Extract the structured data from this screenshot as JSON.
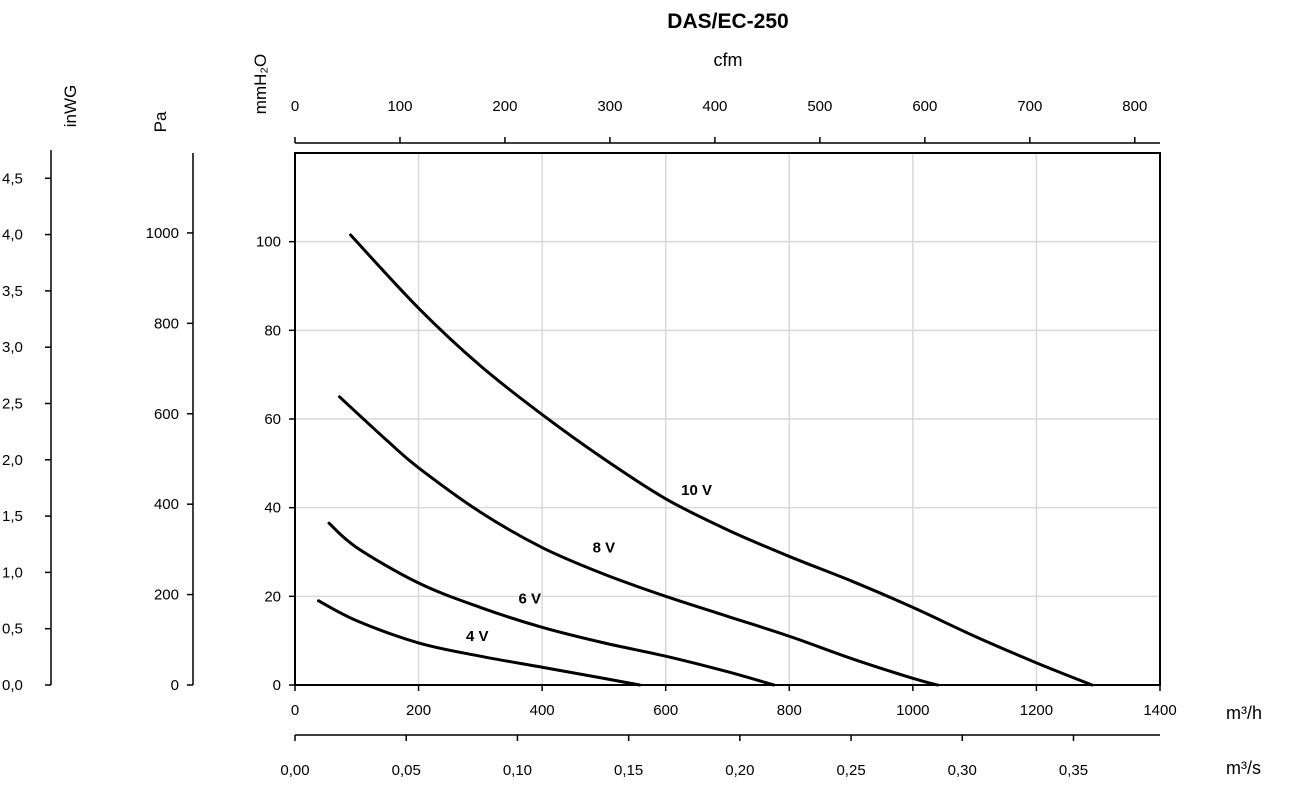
{
  "chart_data": {
    "type": "line",
    "title": "DAS/EC-250",
    "xlabel": "m³/h",
    "ylabel": "mmH₂O",
    "xlim": [
      0,
      1400
    ],
    "ylim": [
      0,
      120
    ],
    "grid": true,
    "x_ticks": [
      "0",
      "200",
      "400",
      "600",
      "800",
      "1000",
      "1200",
      "1400"
    ],
    "y_ticks": [
      "0",
      "20",
      "40",
      "60",
      "80",
      "100"
    ],
    "secondary_axes": {
      "top": {
        "label": "cfm",
        "ticks": [
          "0",
          "100",
          "200",
          "300",
          "400",
          "500",
          "600",
          "700",
          "800"
        ]
      },
      "bottom2": {
        "label": "m³/s",
        "ticks": [
          "0,00",
          "0,05",
          "0,10",
          "0,15",
          "0,20",
          "0,25",
          "0,30",
          "0,35"
        ]
      },
      "left_pa": {
        "label": "Pa",
        "ticks": [
          "0",
          "200",
          "400",
          "600",
          "800",
          "1000"
        ]
      },
      "left_inwg": {
        "label": "inWG",
        "ticks": [
          "0,0",
          "0,5",
          "1,0",
          "1,5",
          "2,0",
          "2,5",
          "3,0",
          "3,5",
          "4,0",
          "4,5"
        ]
      }
    },
    "series": [
      {
        "name": "10 V",
        "x": [
          90,
          200,
          300,
          400,
          500,
          600,
          700,
          800,
          900,
          1000,
          1100,
          1200,
          1290
        ],
        "y": [
          101.5,
          85,
          72,
          61,
          51,
          42,
          35,
          29,
          23.5,
          17.5,
          11,
          5,
          0
        ]
      },
      {
        "name": "8 V",
        "x": [
          72,
          150,
          200,
          300,
          400,
          500,
          600,
          700,
          800,
          900,
          1000,
          1040
        ],
        "y": [
          65,
          55,
          49,
          39,
          31,
          25,
          20,
          15.5,
          11,
          6,
          1.5,
          0
        ]
      },
      {
        "name": "6 V",
        "x": [
          55,
          100,
          200,
          300,
          400,
          500,
          600,
          700,
          775
        ],
        "y": [
          36.5,
          31,
          23,
          17.5,
          13,
          9.5,
          6.5,
          3,
          0
        ]
      },
      {
        "name": "4 V",
        "x": [
          38,
          100,
          200,
          300,
          400,
          500,
          558
        ],
        "y": [
          19,
          14.5,
          9.5,
          6.5,
          4,
          1.5,
          0
        ]
      }
    ],
    "label_positions": [
      {
        "name": "10 V",
        "x": 650,
        "y": 44
      },
      {
        "name": "8 V",
        "x": 500,
        "y": 31
      },
      {
        "name": "6 V",
        "x": 380,
        "y": 19.5
      },
      {
        "name": "4 V",
        "x": 295,
        "y": 11
      }
    ]
  }
}
